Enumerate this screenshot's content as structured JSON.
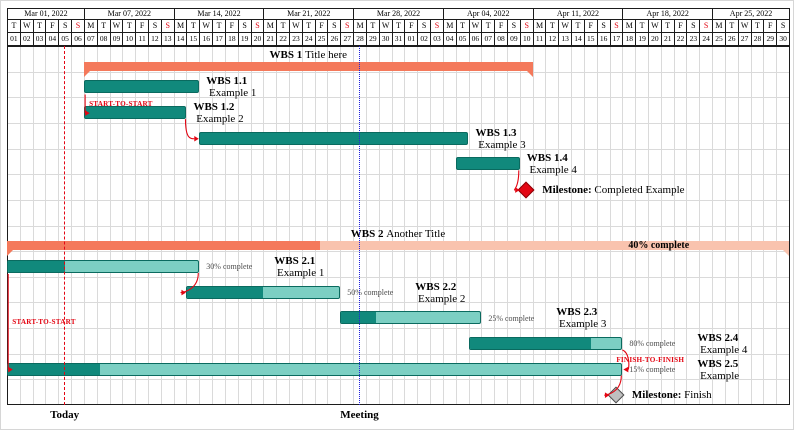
{
  "figure": {
    "background": "#ffffff",
    "colors": {
      "task_fill": "#11897c",
      "task_border": "#0a6a5f",
      "task_light": "#7ccfc3",
      "group_fill": "#f4795b",
      "group_light": "#f9c3ae",
      "link": "#e30613",
      "sunday": "#e30613",
      "today_line": "#e30613",
      "meeting_line": "#2222dd",
      "milestone_red": "#e30613",
      "milestone_red_border": "#8a0004",
      "milestone_gray": "#bfbfbf",
      "milestone_gray_border": "#4a4a4a",
      "pct_text": "#4d4d4d",
      "grid": "#dadada",
      "header_border": "#1c1c1c"
    }
  },
  "chart_data": {
    "type": "gantt",
    "calendar": {
      "num_days": 61,
      "weeks": [
        {
          "label": "Mar 01, 2022",
          "days": 6
        },
        {
          "label": "Mar 07, 2022",
          "days": 7
        },
        {
          "label": "Mar 14, 2022",
          "days": 7
        },
        {
          "label": "Mar 21, 2022",
          "days": 7
        },
        {
          "label": "Mar 28, 2022",
          "days": 7
        },
        {
          "label": "Apr 04, 2022",
          "days": 7
        },
        {
          "label": "Apr 11, 2022",
          "days": 7
        },
        {
          "label": "Apr 18, 2022",
          "days": 7
        },
        {
          "label": "Apr 25, 2022",
          "days": 6
        }
      ],
      "day_letters": [
        "T",
        "W",
        "T",
        "F",
        "S",
        "S",
        "M",
        "T",
        "W",
        "T",
        "F",
        "S",
        "S",
        "M",
        "T",
        "W",
        "T",
        "F",
        "S",
        "S",
        "M",
        "T",
        "W",
        "T",
        "F",
        "S",
        "S",
        "M",
        "T",
        "W",
        "T",
        "F",
        "S",
        "S",
        "M",
        "T",
        "W",
        "T",
        "F",
        "S",
        "S",
        "M",
        "T",
        "W",
        "T",
        "F",
        "S",
        "S",
        "M",
        "T",
        "W",
        "T",
        "F",
        "S",
        "S",
        "M",
        "T",
        "W",
        "T",
        "F",
        "S"
      ],
      "sundays": [
        5,
        12,
        19,
        26,
        33,
        40,
        47,
        54
      ],
      "day_numbers": [
        "01",
        "02",
        "03",
        "04",
        "05",
        "06",
        "07",
        "08",
        "09",
        "10",
        "11",
        "12",
        "13",
        "14",
        "15",
        "16",
        "17",
        "18",
        "19",
        "20",
        "21",
        "22",
        "23",
        "24",
        "25",
        "26",
        "27",
        "28",
        "29",
        "30",
        "31",
        "01",
        "02",
        "03",
        "04",
        "05",
        "06",
        "07",
        "08",
        "09",
        "10",
        "11",
        "12",
        "13",
        "14",
        "15",
        "16",
        "17",
        "18",
        "19",
        "20",
        "21",
        "22",
        "23",
        "24",
        "25",
        "26",
        "27",
        "28",
        "29",
        "30"
      ]
    },
    "rows": [
      {
        "kind": "group",
        "label_bold": "WBS 1",
        "label_rest": "Title here",
        "start": 6,
        "end": 41,
        "progress": null
      },
      {
        "kind": "task",
        "label_bold": "WBS 1.1",
        "label_rest": "Example 1",
        "start": 6,
        "end": 15
      },
      {
        "kind": "task",
        "label_bold": "WBS 1.2",
        "label_rest": "Example 2",
        "start": 6,
        "end": 14
      },
      {
        "kind": "task",
        "label_bold": "WBS 1.3",
        "label_rest": "Example 3",
        "start": 15,
        "end": 36
      },
      {
        "kind": "task",
        "label_bold": "WBS 1.4",
        "label_rest": "Example 4",
        "start": 35,
        "end": 40
      },
      {
        "kind": "milestone",
        "label_bold": "Milestone:",
        "label_rest": "Completed Example",
        "day": 40,
        "color": "red"
      },
      {
        "kind": "spacer"
      },
      {
        "kind": "group",
        "label_bold": "WBS 2",
        "label_rest": "Another Title",
        "start": 0,
        "end": 61,
        "progress": 40,
        "progress_label": "40% complete",
        "label_at": 48
      },
      {
        "kind": "progress",
        "label_bold": "WBS 2.1",
        "label_rest": "Example 1",
        "start": 0,
        "end": 15,
        "progress": 30,
        "progress_label": "30% complete"
      },
      {
        "kind": "progress",
        "label_bold": "WBS 2.2",
        "label_rest": "Example 2",
        "start": 14,
        "end": 26,
        "progress": 50,
        "progress_label": "50% complete"
      },
      {
        "kind": "progress",
        "label_bold": "WBS 2.3",
        "label_rest": "Example 3",
        "start": 26,
        "end": 37,
        "progress": 25,
        "progress_label": "25% complete"
      },
      {
        "kind": "progress",
        "label_bold": "WBS 2.4",
        "label_rest": "Example 4",
        "start": 36,
        "end": 48,
        "progress": 80,
        "progress_label": "80% complete"
      },
      {
        "kind": "progress",
        "label_bold": "WBS 2.5",
        "label_rest": "Example",
        "start": 0,
        "end": 48,
        "progress": 15,
        "progress_label": "15% complete"
      },
      {
        "kind": "milestone",
        "label_bold": "Milestone:",
        "label_rest": "Finish",
        "day": 47,
        "color": "gray"
      }
    ],
    "links": [
      {
        "type": "s2s",
        "from": 1,
        "to": 2,
        "label": "START-TO-START"
      },
      {
        "type": "f2s",
        "from": 2,
        "to": 3,
        "label": null
      },
      {
        "type": "f2m",
        "from": 4,
        "to": 5,
        "label": null
      },
      {
        "type": "f2s",
        "from": 8,
        "to": 9,
        "label": null
      },
      {
        "type": "s2s",
        "from": 8,
        "to": 12,
        "label": "START-TO-START"
      },
      {
        "type": "f2f",
        "from": 11,
        "to": 12,
        "label": "FINISH-TO-FINISH"
      },
      {
        "type": "f2m",
        "from": 12,
        "to": 13,
        "label": null
      }
    ],
    "vlines": [
      {
        "name": "today",
        "day": 4,
        "label": "Today",
        "style": "dashed"
      },
      {
        "name": "meeting",
        "day": 27,
        "label": "Meeting",
        "style": "dotted"
      }
    ]
  }
}
